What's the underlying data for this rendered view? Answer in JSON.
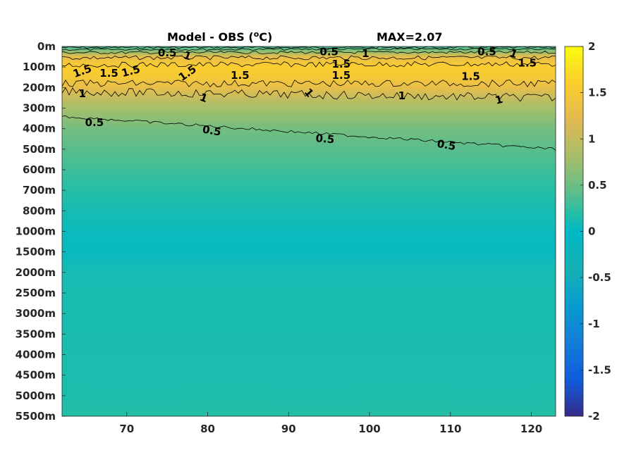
{
  "chart_data": {
    "type": "heatmap",
    "title": "Model - OBS (",
    "title_superscript": "o",
    "title_unit": "C)",
    "max_annotation": "MAX=2.07",
    "xlim": [
      62,
      123
    ],
    "x_ticks": [
      70,
      80,
      90,
      100,
      110,
      120
    ],
    "x_tick_labels": [
      "70",
      "80",
      "90",
      "100",
      "110",
      "120"
    ],
    "y_tick_labels": [
      "0m",
      "100m",
      "200m",
      "300m",
      "400m",
      "500m",
      "600m",
      "700m",
      "800m",
      "1000m",
      "1500m",
      "2000m",
      "2500m",
      "3000m",
      "3500m",
      "4000m",
      "4500m",
      "5000m",
      "5500m"
    ],
    "colorbar": {
      "colormap": "parula",
      "clim": [
        -2,
        2
      ],
      "ticks": [
        2,
        1.5,
        1,
        0.5,
        0,
        -0.5,
        -1,
        -1.5,
        -2
      ],
      "tick_labels": [
        "2",
        "1.5",
        "1",
        "0.5",
        "0",
        "-0.5",
        "-1",
        "-1.5",
        "-2"
      ]
    },
    "depth_profile": [
      {
        "depth": "0m",
        "value": 0.3
      },
      {
        "depth": "50m",
        "value": 1.3
      },
      {
        "depth": "100m",
        "value": 1.6
      },
      {
        "depth": "150m",
        "value": 1.5
      },
      {
        "depth": "200m",
        "value": 1.3
      },
      {
        "depth": "250m",
        "value": 1.0
      },
      {
        "depth": "300m",
        "value": 0.8
      },
      {
        "depth": "400m",
        "value": 0.55
      },
      {
        "depth": "500m",
        "value": 0.4
      },
      {
        "depth": "600m",
        "value": 0.3
      },
      {
        "depth": "700m",
        "value": 0.2
      },
      {
        "depth": "800m",
        "value": 0.12
      },
      {
        "depth": "1000m",
        "value": 0.06
      },
      {
        "depth": "1500m",
        "value": 0.04
      },
      {
        "depth": "2000m",
        "value": 0.12
      },
      {
        "depth": "5000m",
        "value": 0.15
      },
      {
        "depth": "5500m",
        "value": 0.2
      }
    ],
    "contour_levels": [
      0.5,
      1,
      1.5
    ],
    "contour_labels": [
      {
        "text": "0.5",
        "x": 75,
        "depth": "30m",
        "rotate": 0
      },
      {
        "text": "1",
        "x": 77.5,
        "depth": "45m",
        "rotate": 20
      },
      {
        "text": "0.5",
        "x": 95,
        "depth": "25m",
        "rotate": 0
      },
      {
        "text": "1",
        "x": 99.5,
        "depth": "35m",
        "rotate": 0
      },
      {
        "text": "0.5",
        "x": 114.5,
        "depth": "25m",
        "rotate": 0
      },
      {
        "text": "1",
        "x": 117.8,
        "depth": "35m",
        "rotate": 20
      },
      {
        "text": "1.5",
        "x": 64.5,
        "depth": "120m",
        "rotate": -20
      },
      {
        "text": "1.5",
        "x": 67.8,
        "depth": "130m",
        "rotate": 0
      },
      {
        "text": "1.5",
        "x": 70.5,
        "depth": "120m",
        "rotate": -15
      },
      {
        "text": "1.5",
        "x": 77.5,
        "depth": "130m",
        "rotate": -35
      },
      {
        "text": "1.5",
        "x": 84,
        "depth": "140m",
        "rotate": 0
      },
      {
        "text": "1.5",
        "x": 96.5,
        "depth": "85m",
        "rotate": 0
      },
      {
        "text": "1.5",
        "x": 96.5,
        "depth": "140m",
        "rotate": 0
      },
      {
        "text": "1.5",
        "x": 112.5,
        "depth": "145m",
        "rotate": 0
      },
      {
        "text": "1.5",
        "x": 119.5,
        "depth": "80m",
        "rotate": 0
      },
      {
        "text": "1",
        "x": 64.5,
        "depth": "230m",
        "rotate": 0
      },
      {
        "text": "1",
        "x": 79.5,
        "depth": "250m",
        "rotate": 20
      },
      {
        "text": "1",
        "x": 92.5,
        "depth": "225m",
        "rotate": 50
      },
      {
        "text": "1",
        "x": 104,
        "depth": "240m",
        "rotate": 0
      },
      {
        "text": "1",
        "x": 116,
        "depth": "260m",
        "rotate": -15
      },
      {
        "text": "0.5",
        "x": 66,
        "depth": "370m",
        "rotate": 0
      },
      {
        "text": "0.5",
        "x": 80.5,
        "depth": "410m",
        "rotate": 10
      },
      {
        "text": "0.5",
        "x": 94.5,
        "depth": "450m",
        "rotate": 5
      },
      {
        "text": "0.5",
        "x": 109.5,
        "depth": "480m",
        "rotate": 10
      }
    ]
  }
}
